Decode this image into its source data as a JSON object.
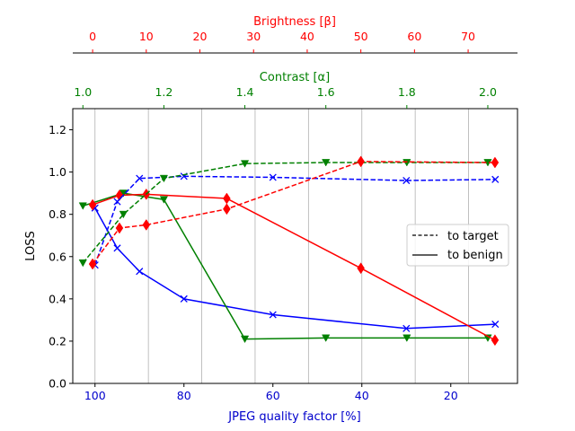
{
  "chart_data": {
    "type": "line",
    "ylabel": "LOSS",
    "ylim": [
      0.0,
      1.3
    ],
    "y_ticks": [
      "0.0",
      "0.2",
      "0.4",
      "0.6",
      "0.8",
      "1.0",
      "1.2"
    ],
    "axes": {
      "bottom": {
        "label": "JPEG quality factor [%]",
        "color": "#0000cc",
        "range": [
          105,
          5
        ],
        "ticks": [
          "100",
          "80",
          "60",
          "40",
          "20"
        ]
      },
      "top_inner": {
        "label": "Contrast [α]",
        "color": "#008000",
        "range": [
          0.975,
          2.0733
        ],
        "ticks": [
          "1.0",
          "1.2",
          "1.4",
          "1.6",
          "1.8",
          "2.0"
        ]
      },
      "top_outer": {
        "label": "Brightness [β]",
        "color": "#ff0000",
        "range": [
          -3.7,
          79.2
        ],
        "ticks": [
          "0",
          "10",
          "20",
          "30",
          "40",
          "50",
          "60",
          "70"
        ]
      }
    },
    "vertical_gridlines_jpeg": [
      100,
      88,
      76,
      64,
      52,
      40,
      28,
      16
    ],
    "legend": {
      "position": "center-right",
      "entries": [
        {
          "label": "to target",
          "style": "dashed"
        },
        {
          "label": "to benign",
          "style": "solid"
        }
      ]
    },
    "series": [
      {
        "name": "JPEG to target",
        "axis": "bottom",
        "color": "#0000ff",
        "style": "dashed",
        "marker": "x",
        "x": [
          100,
          95,
          90,
          80,
          60,
          30,
          10
        ],
        "y": [
          0.56,
          0.86,
          0.97,
          0.98,
          0.975,
          0.96,
          0.965
        ]
      },
      {
        "name": "JPEG to benign",
        "axis": "bottom",
        "color": "#0000ff",
        "style": "solid",
        "marker": "x",
        "x": [
          100,
          95,
          90,
          80,
          60,
          30,
          10
        ],
        "y": [
          0.83,
          0.64,
          0.53,
          0.4,
          0.325,
          0.26,
          0.28
        ]
      },
      {
        "name": "Contrast to target",
        "axis": "top_inner",
        "color": "#008000",
        "style": "dashed",
        "marker": "v",
        "x": [
          1.0,
          1.1,
          1.2,
          1.4,
          1.6,
          1.8,
          2.0
        ],
        "y": [
          0.57,
          0.8,
          0.97,
          1.04,
          1.045,
          1.045,
          1.045
        ]
      },
      {
        "name": "Contrast to benign",
        "axis": "top_inner",
        "color": "#008000",
        "style": "solid",
        "marker": "v",
        "x": [
          1.0,
          1.1,
          1.2,
          1.4,
          1.6,
          1.8,
          2.0
        ],
        "y": [
          0.84,
          0.9,
          0.87,
          0.21,
          0.215,
          0.215,
          0.215
        ]
      },
      {
        "name": "Brightness to target",
        "axis": "top_outer",
        "color": "#ff0000",
        "style": "dashed",
        "marker": "d",
        "x": [
          0,
          5,
          10,
          25,
          50,
          75
        ],
        "y": [
          0.565,
          0.735,
          0.75,
          0.825,
          1.05,
          1.045
        ]
      },
      {
        "name": "Brightness to benign",
        "axis": "top_outer",
        "color": "#ff0000",
        "style": "solid",
        "marker": "d",
        "x": [
          0,
          5,
          10,
          25,
          50,
          75
        ],
        "y": [
          0.845,
          0.89,
          0.895,
          0.875,
          0.545,
          0.205
        ]
      }
    ]
  }
}
